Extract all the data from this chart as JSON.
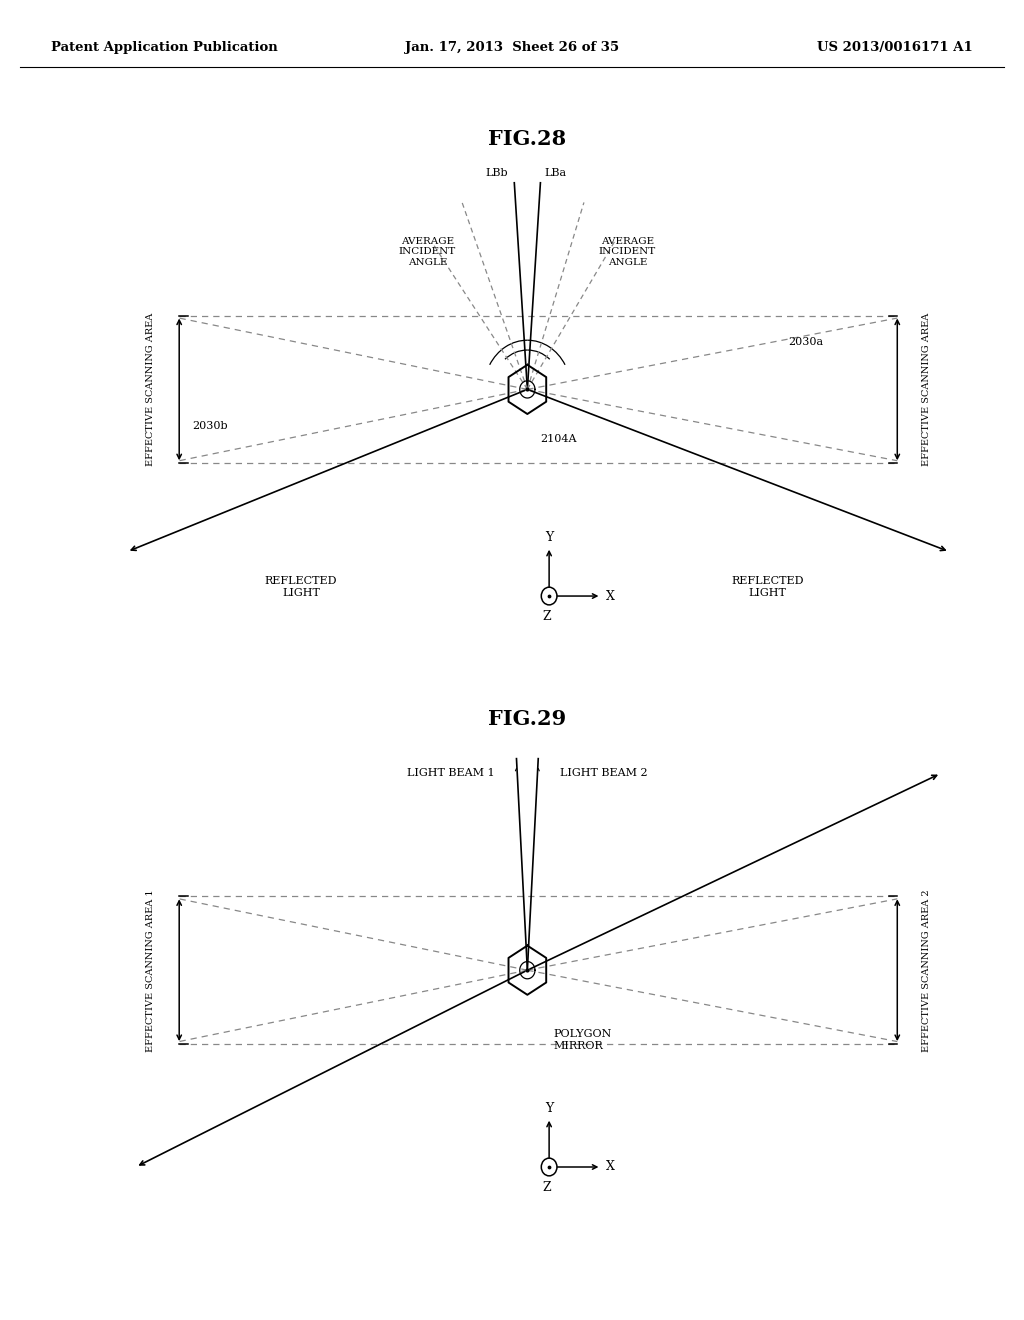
{
  "header_left": "Patent Application Publication",
  "header_center": "Jan. 17, 2013  Sheet 26 of 35",
  "header_right": "US 2013/0016171 A1",
  "fig28_title": "FIG.28",
  "fig29_title": "FIG.29",
  "bg_color": "#ffffff"
}
